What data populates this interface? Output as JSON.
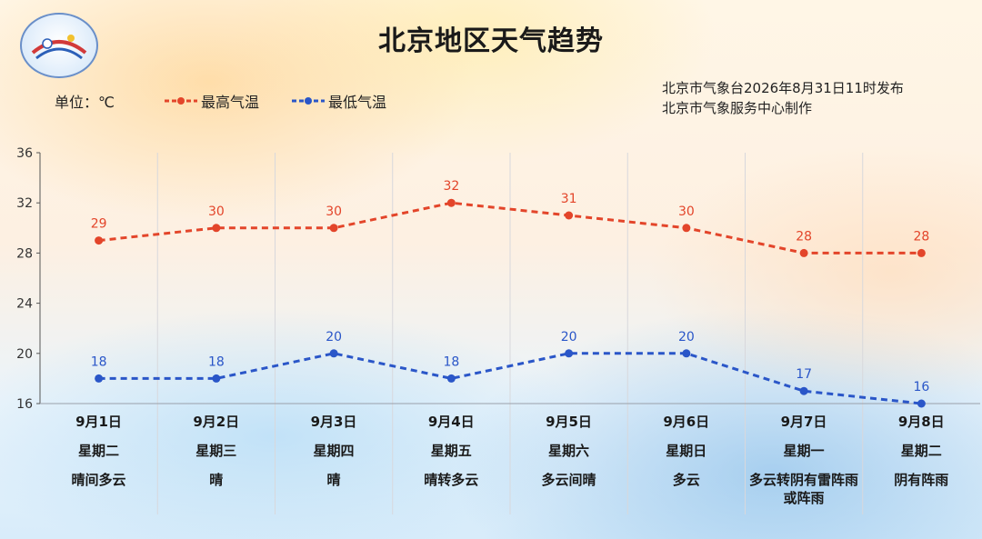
{
  "title": "北京地区天气趋势",
  "unit_label": "单位：℃",
  "legend": {
    "high": "最高气温",
    "low": "最低气温"
  },
  "issuer": {
    "line1": "北京市气象台2026年8月31日11时发布",
    "line2": "北京市气象服务中心制作"
  },
  "colors": {
    "high": "#e3452a",
    "low": "#2a56c8",
    "grid": "#c8c8d0"
  },
  "days": [
    {
      "date": "9月1日",
      "weekday": "星期二",
      "weather": "晴间多云"
    },
    {
      "date": "9月2日",
      "weekday": "星期三",
      "weather": "晴"
    },
    {
      "date": "9月3日",
      "weekday": "星期四",
      "weather": "晴"
    },
    {
      "date": "9月4日",
      "weekday": "星期五",
      "weather": "晴转多云"
    },
    {
      "date": "9月5日",
      "weekday": "星期六",
      "weather": "多云间晴"
    },
    {
      "date": "9月6日",
      "weekday": "星期日",
      "weather": "多云"
    },
    {
      "date": "9月7日",
      "weekday": "星期一",
      "weather": "多云转阴有雷阵雨或阵雨"
    },
    {
      "date": "9月8日",
      "weekday": "星期二",
      "weather": "阴有阵雨"
    }
  ],
  "chart_data": {
    "type": "line",
    "title": "北京地区天气趋势",
    "categories": [
      "9月1日",
      "9月2日",
      "9月3日",
      "9月4日",
      "9月5日",
      "9月6日",
      "9月7日",
      "9月8日"
    ],
    "series": [
      {
        "name": "最高气温",
        "values": [
          29,
          30,
          30,
          32,
          31,
          30,
          28,
          28
        ]
      },
      {
        "name": "最低气温",
        "values": [
          18,
          18,
          20,
          18,
          20,
          20,
          17,
          16
        ]
      }
    ],
    "yticks": [
      "16",
      "20",
      "24",
      "28",
      "32",
      "36"
    ],
    "ylim": [
      16,
      36
    ],
    "grid": true,
    "legend_position": "top-left"
  }
}
